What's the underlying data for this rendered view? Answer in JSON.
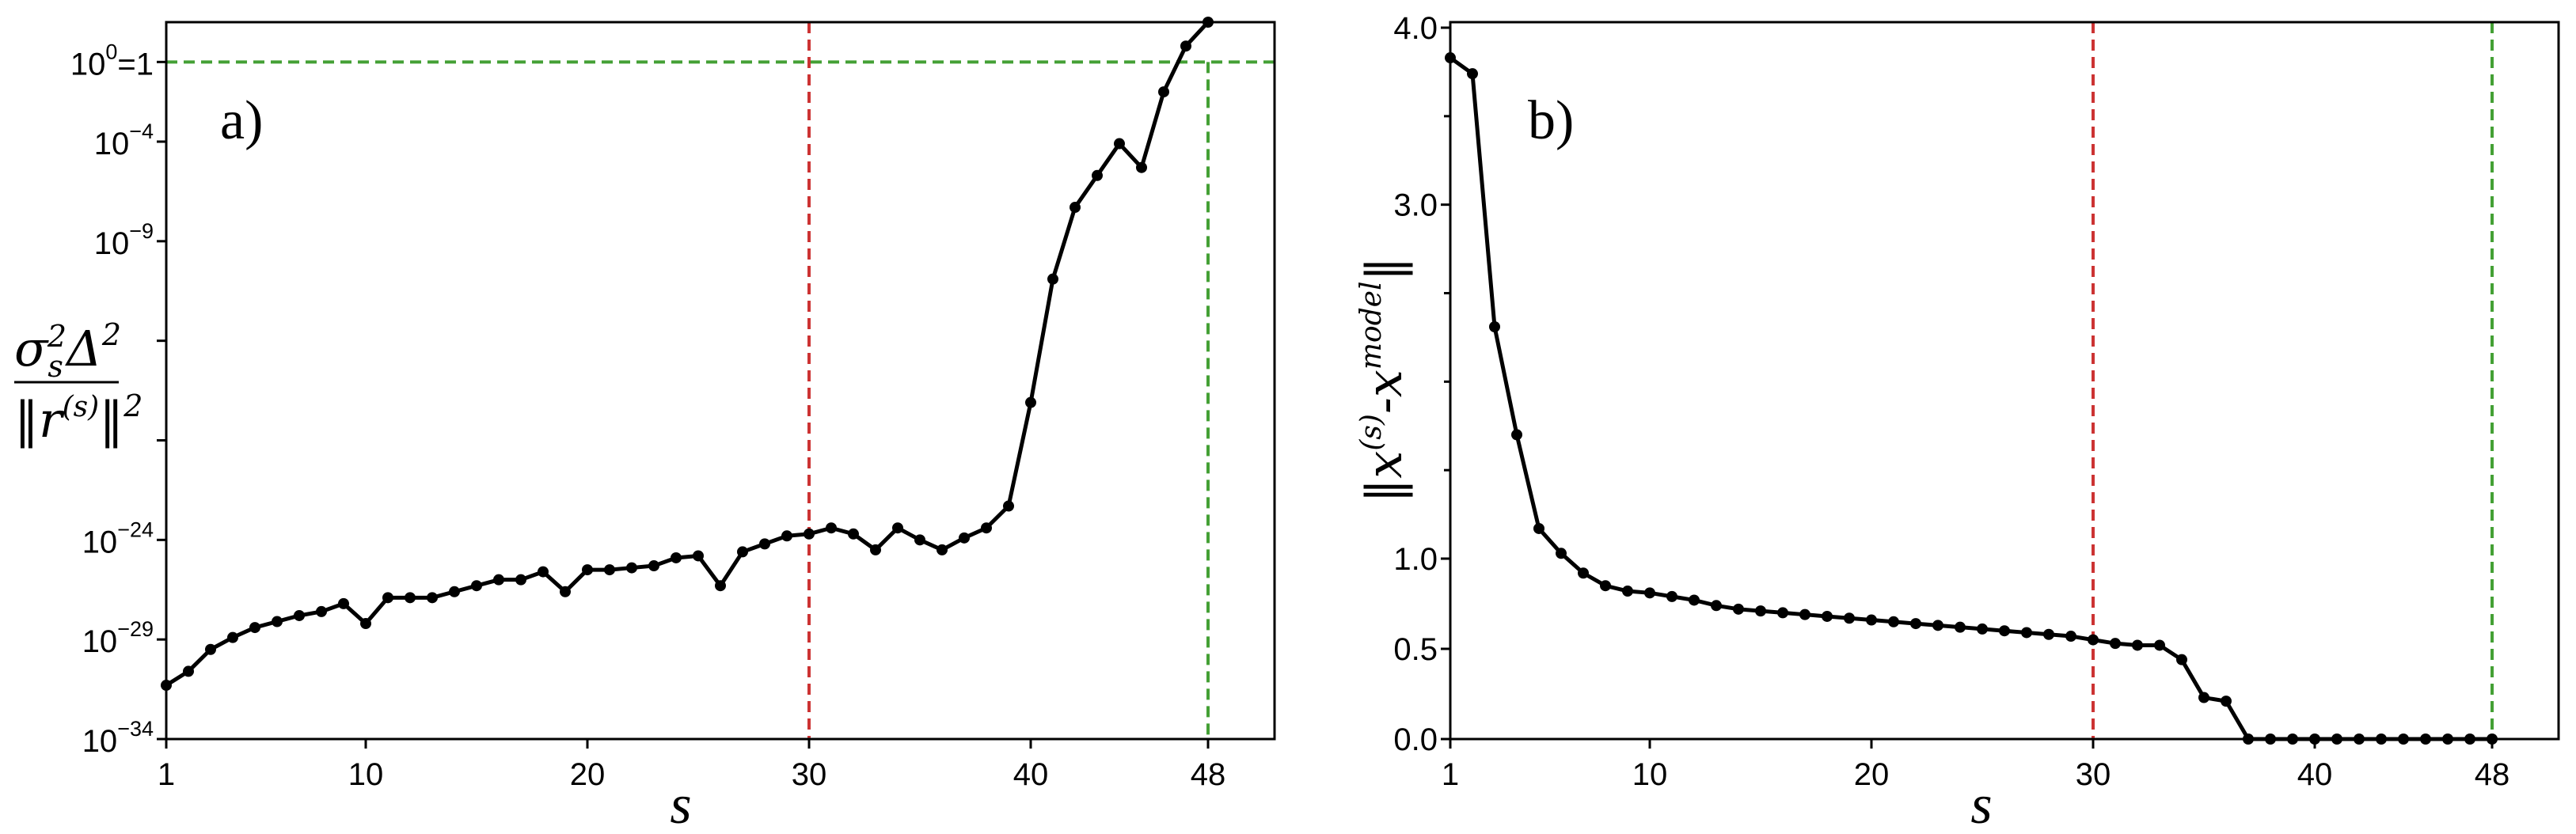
{
  "chart_data": [
    {
      "type": "line",
      "panel_label": "a)",
      "xlabel": "s",
      "ylabel": {
        "numerator": "σs2Δ2",
        "denominator": "‖r(s)‖2",
        "sigma": "σ",
        "s_sub": "s",
        "two": "2",
        "delta": "Δ",
        "bars": "‖",
        "r": "r",
        "s_paren": "(s)"
      },
      "yscale": "log",
      "xlim": [
        1,
        51
      ],
      "ylim_exp": [
        -34,
        2
      ],
      "xticks": [
        {
          "value": 1,
          "label": "1",
          "color": "#000000"
        },
        {
          "value": 10,
          "label": "10",
          "color": "#000000"
        },
        {
          "value": 20,
          "label": "20",
          "color": "#000000"
        },
        {
          "value": 30,
          "label": "30",
          "color": "#cc3333"
        },
        {
          "value": 40,
          "label": "40",
          "color": "#000000"
        },
        {
          "value": 48,
          "label": "48",
          "color": "#44a035"
        }
      ],
      "yticks_major": [
        {
          "exp": 0,
          "label": "10",
          "sup": "0",
          "suffix": "=1"
        },
        {
          "exp": -4,
          "label": "10",
          "sup": "−4",
          "suffix": ""
        },
        {
          "exp": -9,
          "label": "10",
          "sup": "−9",
          "suffix": ""
        },
        {
          "exp": -24,
          "label": "10",
          "sup": "−24",
          "suffix": ""
        },
        {
          "exp": -29,
          "label": "10",
          "sup": "−29",
          "suffix": ""
        },
        {
          "exp": -34,
          "label": "10",
          "sup": "−34",
          "suffix": ""
        }
      ],
      "yticks_minor_exp": [
        -14,
        -19
      ],
      "vlines": [
        {
          "x": 30,
          "color": "#cc3333"
        },
        {
          "x": 48,
          "color": "#44a035"
        }
      ],
      "hline": {
        "exp": 0,
        "color": "#44a035"
      },
      "x": [
        1,
        2,
        3,
        4,
        5,
        6,
        7,
        8,
        9,
        10,
        11,
        12,
        13,
        14,
        15,
        16,
        17,
        18,
        19,
        20,
        21,
        22,
        23,
        24,
        25,
        26,
        27,
        28,
        29,
        30,
        31,
        32,
        33,
        34,
        35,
        36,
        37,
        38,
        39,
        40,
        41,
        42,
        43,
        44,
        45,
        46,
        47,
        48
      ],
      "log10_values": [
        -31.3,
        -30.6,
        -29.5,
        -28.9,
        -28.4,
        -28.1,
        -27.8,
        -27.6,
        -27.2,
        -28.2,
        -26.9,
        -26.9,
        -26.9,
        -26.6,
        -26.3,
        -26.0,
        -26.0,
        -25.6,
        -26.6,
        -25.5,
        -25.5,
        -25.4,
        -25.3,
        -24.9,
        -24.8,
        -26.3,
        -24.6,
        -24.2,
        -23.8,
        -23.7,
        -23.4,
        -23.7,
        -24.5,
        -23.4,
        -24.0,
        -24.5,
        -23.9,
        -23.4,
        -22.3,
        -17.1,
        -10.9,
        -7.3,
        -5.7,
        -4.1,
        -5.3,
        -1.5,
        0.8,
        2.0
      ]
    },
    {
      "type": "line",
      "panel_label": "b)",
      "xlabel": "s",
      "ylabel": {
        "text": "‖x(s)-xmodel‖",
        "x": "x",
        "s_paren": "(s)",
        "dash": "-",
        "model": "model",
        "bars": "‖"
      },
      "xlim": [
        1,
        51
      ],
      "ylim": [
        0,
        4.0
      ],
      "xticks": [
        {
          "value": 1,
          "label": "1",
          "color": "#000000"
        },
        {
          "value": 10,
          "label": "10",
          "color": "#000000"
        },
        {
          "value": 20,
          "label": "20",
          "color": "#000000"
        },
        {
          "value": 30,
          "label": "30",
          "color": "#cc3333"
        },
        {
          "value": 40,
          "label": "40",
          "color": "#000000"
        },
        {
          "value": 48,
          "label": "48",
          "color": "#44a035"
        }
      ],
      "yticks": [
        {
          "value": 0.0,
          "label": "0.0"
        },
        {
          "value": 0.5,
          "label": "0.5"
        },
        {
          "value": 1.0,
          "label": "1.0"
        },
        {
          "value": 3.0,
          "label": "3.0"
        },
        {
          "value": 4.0,
          "label": "4.0"
        }
      ],
      "yticks_minor": [
        1.5,
        2.0,
        2.5,
        3.5
      ],
      "vlines": [
        {
          "x": 30,
          "color": "#cc3333"
        },
        {
          "x": 48,
          "color": "#44a035"
        }
      ],
      "x": [
        1,
        2,
        3,
        4,
        5,
        6,
        7,
        8,
        9,
        10,
        11,
        12,
        13,
        14,
        15,
        16,
        17,
        18,
        19,
        20,
        21,
        22,
        23,
        24,
        25,
        26,
        27,
        28,
        29,
        30,
        31,
        32,
        33,
        34,
        35,
        36,
        37,
        38,
        39,
        40,
        41,
        42,
        43,
        44,
        45,
        46,
        47,
        48
      ],
      "values": [
        3.83,
        3.74,
        2.31,
        1.7,
        1.17,
        1.03,
        0.92,
        0.85,
        0.82,
        0.81,
        0.79,
        0.77,
        0.74,
        0.72,
        0.71,
        0.7,
        0.69,
        0.68,
        0.67,
        0.66,
        0.65,
        0.64,
        0.63,
        0.62,
        0.61,
        0.6,
        0.59,
        0.58,
        0.57,
        0.55,
        0.53,
        0.52,
        0.52,
        0.44,
        0.23,
        0.21,
        0.0,
        0.0,
        0.0,
        0.0,
        0.0,
        0.0,
        0.0,
        0.0,
        0.0,
        0.0,
        0.0,
        0.0
      ]
    }
  ]
}
